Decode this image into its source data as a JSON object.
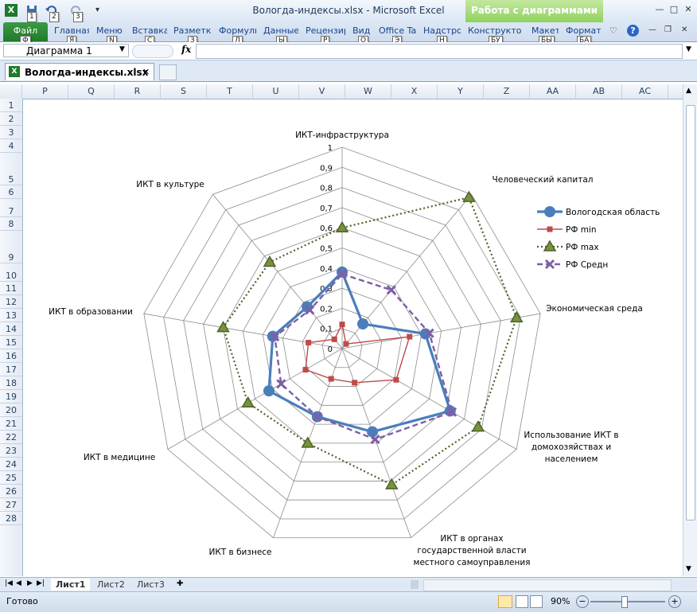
{
  "window": {
    "title": "Вологда-индексы.xlsx  -  Microsoft Excel",
    "context_tab": "Работа с диаграммами",
    "qat_keytips": [
      "1",
      "2",
      "3"
    ]
  },
  "ribbon": {
    "file_tab": "Файл",
    "tabs": [
      {
        "label": "Главная",
        "keytip": "Я"
      },
      {
        "label": "Меню",
        "keytip": "N"
      },
      {
        "label": "Вставка",
        "keytip": "С"
      },
      {
        "label": "Разметка",
        "keytip": "З"
      },
      {
        "label": "Формулы",
        "keytip": "Л"
      },
      {
        "label": "Данные",
        "keytip": "Ы"
      },
      {
        "label": "Рецензирование",
        "keytip": "Р"
      },
      {
        "label": "Вид",
        "keytip": "О"
      },
      {
        "label": "Office Tab",
        "keytip": "Э"
      },
      {
        "label": "Надстройки",
        "keytip": "Н"
      },
      {
        "label": "Конструктор",
        "keytip": "БУ"
      },
      {
        "label": "Макет",
        "keytip": "БЫ"
      },
      {
        "label": "Формат",
        "keytip": "БА"
      }
    ],
    "file_keytip": "Ф"
  },
  "formula_bar": {
    "name_box": "Диаграмма 1",
    "fx_label": "fx",
    "formula": ""
  },
  "doc_tab": {
    "label": "Вологда-индексы.xlsx"
  },
  "columns": [
    "P",
    "Q",
    "R",
    "S",
    "T",
    "U",
    "V",
    "W",
    "X",
    "Y",
    "Z",
    "AA",
    "AB",
    "AC"
  ],
  "rows": [
    "1",
    "2",
    "3",
    "4",
    "5",
    "6",
    "7",
    "8",
    "9",
    "10",
    "11",
    "12",
    "13",
    "14",
    "15",
    "16",
    "17",
    "18",
    "19",
    "20",
    "21",
    "22",
    "23",
    "24",
    "25",
    "26",
    "27",
    "28"
  ],
  "sheets": [
    "Лист1",
    "Лист2",
    "Лист3"
  ],
  "active_sheet": "Лист1",
  "status": {
    "ready": "Готово",
    "zoom": "90%",
    "zoom_level": 0.9
  },
  "colors": {
    "vologda": "#4a7ebb",
    "rf_min": "#be4b48",
    "rf_max": "#4f6228",
    "rf_avg": "#7e5fa6",
    "max_marker_fill": "#77933c"
  },
  "chart_data": {
    "type": "radar",
    "categories": [
      "ИКТ-инфраструктура",
      "Человеческий капитал",
      "Экономическая среда",
      "Использование ИКТ в домохозяйствах и населением",
      "ИКТ в органах государственной власти и местного самоуправления",
      "ИКТ в бизнесе",
      "ИКТ в медицине",
      "ИКТ в образовании",
      "ИКТ в культуре"
    ],
    "ticks": [
      "0",
      "0,1",
      "0,2",
      "0,3",
      "0,4",
      "0,5",
      "0,6",
      "0,7",
      "0,8",
      "0,9",
      "1"
    ],
    "rlim": [
      0,
      1
    ],
    "series": [
      {
        "name": "Вологодская область",
        "values": [
          0.38,
          0.16,
          0.42,
          0.62,
          0.44,
          0.36,
          0.42,
          0.35,
          0.27
        ]
      },
      {
        "name": "РФ min",
        "values": [
          0.12,
          0.03,
          0.34,
          0.31,
          0.18,
          0.16,
          0.21,
          0.17,
          0.06
        ]
      },
      {
        "name": "РФ max",
        "values": [
          0.6,
          0.98,
          0.88,
          0.78,
          0.72,
          0.5,
          0.54,
          0.6,
          0.56
        ]
      },
      {
        "name": "РФ Средн",
        "values": [
          0.37,
          0.38,
          0.44,
          0.63,
          0.48,
          0.36,
          0.35,
          0.34,
          0.25
        ]
      }
    ],
    "legend_position": "right",
    "grid": true
  }
}
